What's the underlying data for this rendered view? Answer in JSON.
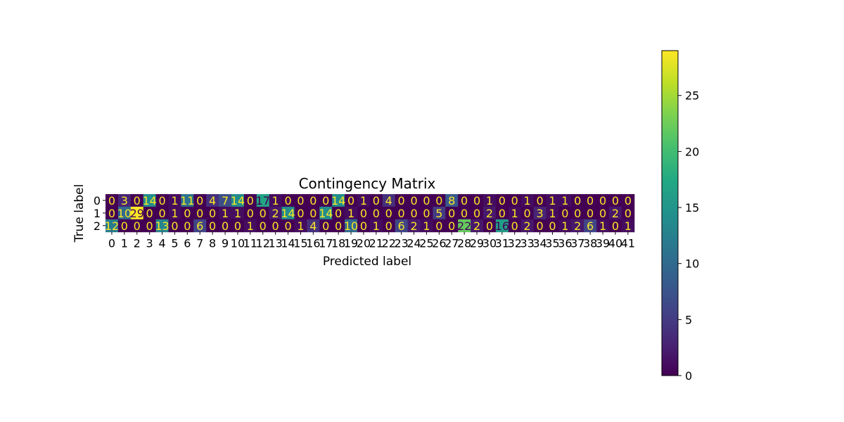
{
  "chart_data": {
    "type": "heatmap",
    "title": "Contingency Matrix",
    "xlabel": "Predicted label",
    "ylabel": "True label",
    "row_labels": [
      "0",
      "1",
      "2"
    ],
    "col_labels": [
      "0",
      "1",
      "2",
      "3",
      "4",
      "5",
      "6",
      "7",
      "8",
      "9",
      "10",
      "11",
      "12",
      "13",
      "14",
      "15",
      "16",
      "17",
      "18",
      "19",
      "20",
      "21",
      "22",
      "23",
      "24",
      "25",
      "26",
      "27",
      "28",
      "29",
      "30",
      "31",
      "32",
      "33",
      "34",
      "35",
      "36",
      "37",
      "38",
      "39",
      "40",
      "41"
    ],
    "values": [
      [
        0,
        3,
        0,
        14,
        0,
        1,
        11,
        0,
        4,
        7,
        14,
        0,
        17,
        1,
        0,
        0,
        0,
        0,
        14,
        0,
        1,
        0,
        4,
        0,
        0,
        0,
        0,
        8,
        0,
        0,
        1,
        0,
        0,
        1,
        0,
        1,
        1,
        0,
        0,
        0,
        0,
        0
      ],
      [
        0,
        10,
        29,
        0,
        0,
        1,
        0,
        0,
        0,
        1,
        1,
        0,
        0,
        2,
        14,
        0,
        0,
        14,
        0,
        1,
        0,
        0,
        0,
        0,
        0,
        0,
        5,
        0,
        0,
        0,
        2,
        0,
        1,
        0,
        3,
        1,
        0,
        0,
        0,
        0,
        2,
        0
      ],
      [
        12,
        0,
        0,
        0,
        13,
        0,
        0,
        6,
        0,
        0,
        0,
        1,
        0,
        0,
        0,
        1,
        4,
        0,
        0,
        10,
        0,
        1,
        0,
        6,
        2,
        1,
        0,
        0,
        22,
        2,
        0,
        16,
        0,
        2,
        0,
        0,
        1,
        2,
        6,
        1,
        0,
        1
      ]
    ],
    "colormap": "viridis",
    "colorbar": {
      "min": 0,
      "max": 29,
      "ticks": [
        0,
        5,
        10,
        15,
        20,
        25
      ]
    },
    "annotation_colors": {
      "on_dark": "#fde725",
      "on_light": "#440154"
    }
  }
}
